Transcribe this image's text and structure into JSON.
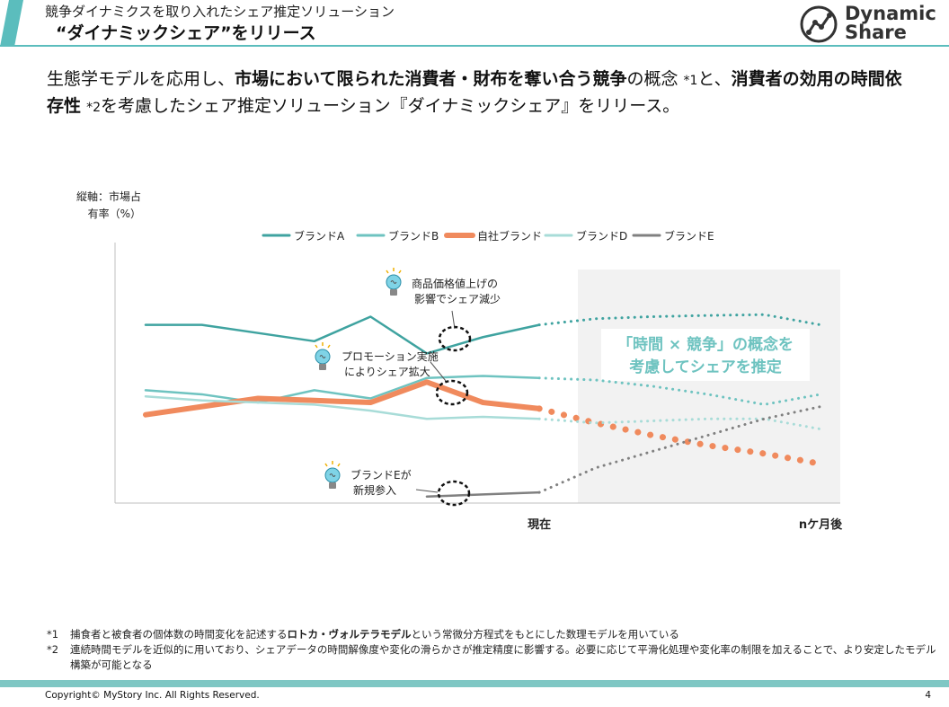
{
  "header": {
    "subtitle": "競争ダイナミクスを取り入れたシェア推定ソリューション",
    "title": "“ダイナミックシェア”をリリース",
    "logo_line1": "Dynamic",
    "logo_line2": "Share"
  },
  "lead": {
    "p1": "生態学モデルを応用し、",
    "b1": "市場において限られた消費者・財布を奪い合う競争",
    "p2": "の概念 ",
    "n1": "*1",
    "p3": "と、",
    "b2": "消費者の効用の時間依存性",
    "p4": " ",
    "n2": "*2",
    "p5": "を考慮したシェア推定ソリューション『ダイナミックシェア』をリリース。"
  },
  "chart_data": {
    "type": "line",
    "ylabel_line1": "縦軸：市場占",
    "ylabel_line2": "有率（%）",
    "x_labels": [
      "現在",
      "nケ月後"
    ],
    "projection_box": {
      "line1": "「時間 × 競争」の概念を",
      "line2": "考慮してシェアを推定"
    },
    "series": [
      {
        "name": "ブランドA",
        "color": "#3fa3a0",
        "actual": [
          [
            0,
            48
          ],
          [
            1,
            48
          ],
          [
            2,
            46
          ],
          [
            3,
            44
          ],
          [
            4,
            50
          ],
          [
            5,
            41
          ],
          [
            6,
            45
          ],
          [
            7,
            48
          ]
        ],
        "forecast": [
          [
            7,
            48
          ],
          [
            8,
            49.5
          ],
          [
            9,
            50
          ],
          [
            10,
            50.3
          ],
          [
            11,
            50.5
          ],
          [
            12,
            48
          ]
        ]
      },
      {
        "name": "ブランドB",
        "color": "#6ec3c0",
        "actual": [
          [
            0,
            32
          ],
          [
            1,
            31
          ],
          [
            2,
            29
          ],
          [
            3,
            32
          ],
          [
            4,
            30
          ],
          [
            5,
            35
          ],
          [
            6,
            35.5
          ],
          [
            7,
            35
          ]
        ],
        "forecast": [
          [
            7,
            35
          ],
          [
            8,
            34.5
          ],
          [
            9,
            33
          ],
          [
            10,
            31
          ],
          [
            11,
            28.5
          ],
          [
            12,
            31
          ]
        ]
      },
      {
        "name": "自社ブランド",
        "color": "#f08a5d",
        "actual": [
          [
            0,
            26
          ],
          [
            1,
            28
          ],
          [
            2,
            30
          ],
          [
            3,
            29.5
          ],
          [
            4,
            29
          ],
          [
            5,
            34
          ],
          [
            6,
            29
          ],
          [
            7,
            27.5
          ]
        ],
        "forecast": [
          [
            7,
            27.5
          ],
          [
            8,
            24
          ],
          [
            9,
            21
          ],
          [
            10,
            18.5
          ],
          [
            11,
            16.5
          ],
          [
            12,
            14
          ]
        ]
      },
      {
        "name": "ブランドD",
        "color": "#a8dcd8",
        "actual": [
          [
            0,
            30.5
          ],
          [
            1,
            29.5
          ],
          [
            2,
            29
          ],
          [
            3,
            28.5
          ],
          [
            4,
            27
          ],
          [
            5,
            25
          ],
          [
            6,
            25.5
          ],
          [
            7,
            25
          ]
        ],
        "forecast": [
          [
            7,
            25
          ],
          [
            8,
            24
          ],
          [
            9,
            24.5
          ],
          [
            10,
            25
          ],
          [
            11,
            25
          ],
          [
            12,
            22.5
          ]
        ]
      },
      {
        "name": "ブランドE",
        "color": "#808080",
        "actual": [
          [
            5,
            6
          ],
          [
            6,
            6.5
          ],
          [
            7,
            7
          ]
        ],
        "forecast": [
          [
            7,
            7
          ],
          [
            8,
            13
          ],
          [
            9,
            17
          ],
          [
            10,
            21
          ],
          [
            11,
            25
          ],
          [
            12,
            28
          ]
        ]
      }
    ],
    "annotations": [
      {
        "line1": "商品価格値上げの",
        "line2": "影響でシェア減少"
      },
      {
        "line1": "プロモーション実施",
        "line2": "によりシェア拡大"
      },
      {
        "line1": "ブランドEが",
        "line2": "新規参入"
      }
    ]
  },
  "footnotes": [
    {
      "mark": "*1",
      "pre": "捕食者と被食者の個体数の時間変化を記述する",
      "bold": "ロトカ・ヴォルテラモデル",
      "post": "という常微分方程式をもとにした数理モデルを用いている"
    },
    {
      "mark": "*2",
      "pre": "連続時間モデルを近似的に用いており、シェアデータの時間解像度や変化の滑らかさが推定精度に影響する。必要に応じて平滑化処理や変化率の制限を加えることで、より安定したモデル構築が可能となる",
      "bold": "",
      "post": ""
    }
  ],
  "footer": {
    "copyright": "Copyright© MyStory Inc. All Rights Reserved.",
    "page": "4"
  }
}
